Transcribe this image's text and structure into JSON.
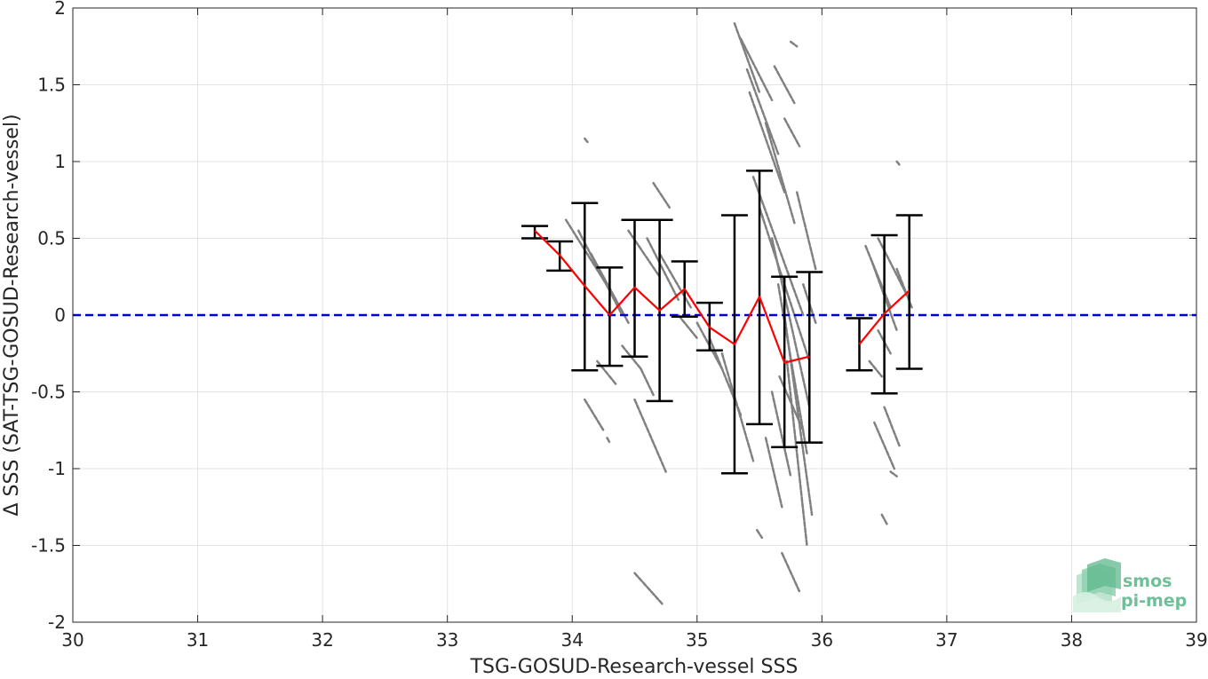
{
  "chart_data": {
    "type": "scatter",
    "xlabel": "TSG-GOSUD-Research-vessel SSS",
    "ylabel": "Δ SSS (SAT-TSG-GOSUD-Research-vessel)",
    "xlim": [
      30,
      39
    ],
    "ylim": [
      -2,
      2
    ],
    "x_ticks": [
      30,
      31,
      32,
      33,
      34,
      35,
      36,
      37,
      38,
      39
    ],
    "y_ticks": [
      -2,
      -1.5,
      -1,
      -0.5,
      0,
      0.5,
      1,
      1.5,
      2
    ],
    "grid": true,
    "zero_line": {
      "y": 0,
      "color": "#0000cc",
      "style": "dashed"
    },
    "scatter_color": "#808080",
    "scatter_segments": [
      [
        33.95,
        0.62,
        34.35,
        0.1
      ],
      [
        34.05,
        0.55,
        34.4,
        0.0
      ],
      [
        34.1,
        1.15,
        34.13,
        1.12
      ],
      [
        34.15,
        0.4,
        34.45,
        -0.05
      ],
      [
        34.1,
        -0.55,
        34.25,
        -0.75
      ],
      [
        34.2,
        -0.3,
        34.35,
        -0.45
      ],
      [
        34.28,
        -0.8,
        34.3,
        -0.83
      ],
      [
        34.4,
        -0.2,
        34.55,
        -0.35
      ],
      [
        34.45,
        0.55,
        34.7,
        0.25
      ],
      [
        34.5,
        -0.55,
        34.75,
        -1.02
      ],
      [
        34.55,
        -0.35,
        34.65,
        -0.52
      ],
      [
        34.6,
        0.5,
        34.85,
        0.1
      ],
      [
        34.65,
        0.86,
        34.78,
        0.7
      ],
      [
        34.5,
        -1.68,
        34.72,
        -1.88
      ],
      [
        34.7,
        0.4,
        34.95,
        0.05
      ],
      [
        34.85,
        0.0,
        35.0,
        -0.15
      ],
      [
        35.0,
        -0.05,
        35.2,
        -0.35
      ],
      [
        35.1,
        -0.15,
        35.35,
        -0.65
      ],
      [
        35.2,
        -0.25,
        35.45,
        -0.95
      ],
      [
        35.3,
        1.9,
        35.5,
        1.45
      ],
      [
        35.35,
        1.8,
        35.6,
        1.4
      ],
      [
        35.4,
        1.6,
        35.65,
        1.05
      ],
      [
        35.42,
        1.45,
        35.7,
        0.8
      ],
      [
        35.45,
        0.9,
        35.85,
        0.0
      ],
      [
        35.5,
        0.7,
        35.9,
        -0.3
      ],
      [
        35.55,
        1.25,
        35.78,
        0.6
      ],
      [
        35.6,
        0.5,
        35.9,
        -0.6
      ],
      [
        35.65,
        0.2,
        35.88,
        -0.9
      ],
      [
        35.7,
        0.0,
        35.92,
        -1.3
      ],
      [
        35.72,
        -0.3,
        35.88,
        -1.5
      ],
      [
        35.6,
        -0.5,
        35.75,
        -1.05
      ],
      [
        35.55,
        -0.8,
        35.68,
        -1.25
      ],
      [
        35.48,
        -1.4,
        35.52,
        -1.45
      ],
      [
        35.68,
        -1.55,
        35.82,
        -1.8
      ],
      [
        35.75,
        1.78,
        35.8,
        1.75
      ],
      [
        35.8,
        0.8,
        35.95,
        0.3
      ],
      [
        35.62,
        1.62,
        35.78,
        1.38
      ],
      [
        35.7,
        1.28,
        35.82,
        1.1
      ],
      [
        35.85,
        0.2,
        35.95,
        -0.05
      ],
      [
        35.66,
        -0.4,
        35.85,
        -0.75
      ],
      [
        36.35,
        0.45,
        36.55,
        0.05
      ],
      [
        36.4,
        0.35,
        36.6,
        -0.1
      ],
      [
        36.45,
        0.5,
        36.7,
        0.1
      ],
      [
        36.38,
        -0.3,
        36.48,
        -0.4
      ],
      [
        36.42,
        -0.7,
        36.58,
        -1.0
      ],
      [
        36.5,
        -0.6,
        36.62,
        -0.85
      ],
      [
        36.55,
        -1.02,
        36.6,
        -1.05
      ],
      [
        36.48,
        -1.3,
        36.52,
        -1.36
      ],
      [
        36.6,
        0.3,
        36.72,
        0.05
      ],
      [
        36.6,
        1.0,
        36.62,
        0.98
      ],
      [
        36.45,
        -0.1,
        36.55,
        -0.25
      ]
    ],
    "series": [
      {
        "name": "",
        "color": "#ff0000",
        "x": [
          33.7,
          33.9,
          34.1,
          34.3,
          34.5,
          34.7,
          34.9,
          35.1,
          35.3,
          35.5,
          35.7,
          35.9
        ],
        "y": [
          0.55,
          0.39,
          0.19,
          0.0,
          0.18,
          0.03,
          0.17,
          -0.08,
          -0.19,
          0.12,
          -0.31,
          -0.27
        ]
      },
      {
        "name": "",
        "color": "#ff0000",
        "x": [
          36.3,
          36.5,
          36.7
        ],
        "y": [
          -0.19,
          0.01,
          0.16
        ]
      }
    ],
    "error_bars": [
      {
        "x": 33.7,
        "low": 0.5,
        "high": 0.58
      },
      {
        "x": 33.9,
        "low": 0.29,
        "high": 0.48
      },
      {
        "x": 34.1,
        "low": -0.36,
        "high": 0.73
      },
      {
        "x": 34.3,
        "low": -0.33,
        "high": 0.31
      },
      {
        "x": 34.5,
        "low": -0.27,
        "high": 0.62
      },
      {
        "x": 34.7,
        "low": -0.56,
        "high": 0.62
      },
      {
        "x": 34.9,
        "low": -0.01,
        "high": 0.35
      },
      {
        "x": 35.1,
        "low": -0.23,
        "high": 0.08
      },
      {
        "x": 35.3,
        "low": -1.03,
        "high": 0.65
      },
      {
        "x": 35.5,
        "low": -0.71,
        "high": 0.94
      },
      {
        "x": 35.7,
        "low": -0.86,
        "high": 0.25
      },
      {
        "x": 35.9,
        "low": -0.83,
        "high": 0.28
      },
      {
        "x": 36.3,
        "low": -0.36,
        "high": -0.02
      },
      {
        "x": 36.5,
        "low": -0.51,
        "high": 0.52
      },
      {
        "x": 36.7,
        "low": -0.35,
        "high": 0.65
      }
    ]
  },
  "logo": {
    "line1": "smos",
    "line2": "pi-mep"
  }
}
